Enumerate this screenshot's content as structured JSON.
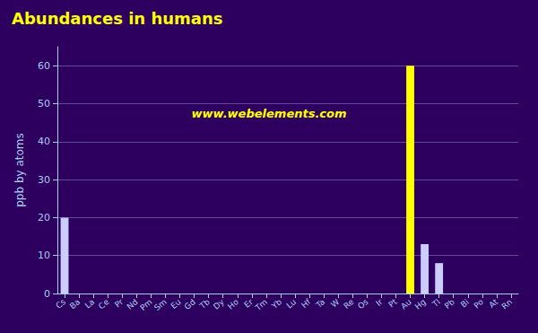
{
  "chart_data": {
    "type": "bar",
    "title": "Abundances in humans",
    "y_label": "ppb by atoms",
    "annotations": [
      "www.webelements.com"
    ],
    "categories": [
      "Cs",
      "Ba",
      "La",
      "Ce",
      "Pr",
      "Nd",
      "Pm",
      "Sm",
      "Eu",
      "Gd",
      "Tb",
      "Dy",
      "Ho",
      "Er",
      "Tm",
      "Yb",
      "Lu",
      "Hf",
      "Ta",
      "W",
      "Re",
      "Os",
      "Ir",
      "Pt",
      "Au",
      "Hg",
      "Tl",
      "Pb",
      "Bi",
      "Po",
      "At",
      "Rn"
    ],
    "values": [
      20,
      0,
      0,
      0,
      0,
      0,
      0,
      0,
      0,
      0,
      0,
      0,
      0,
      0,
      0,
      0,
      0,
      0,
      0,
      0,
      0,
      0,
      0,
      0,
      60,
      13,
      8,
      0,
      0,
      0,
      0,
      0
    ],
    "colors": [
      "#ccccff",
      "#000000",
      "#000000",
      "#000000",
      "#000000",
      "#000000",
      "#000000",
      "#000000",
      "#000000",
      "#000000",
      "#000000",
      "#000000",
      "#000000",
      "#000000",
      "#000000",
      "#000000",
      "#000000",
      "#000000",
      "#000000",
      "#000000",
      "#000000",
      "#000000",
      "#000000",
      "#000000",
      "#ffff00",
      "#ccccff",
      "#ccccff",
      "#000000",
      "#000000",
      "#000000",
      "#000000",
      "#000000"
    ],
    "ylim": [
      0,
      65
    ],
    "yticks": [
      0,
      10,
      20,
      30,
      40,
      50,
      60
    ],
    "grid": true
  }
}
